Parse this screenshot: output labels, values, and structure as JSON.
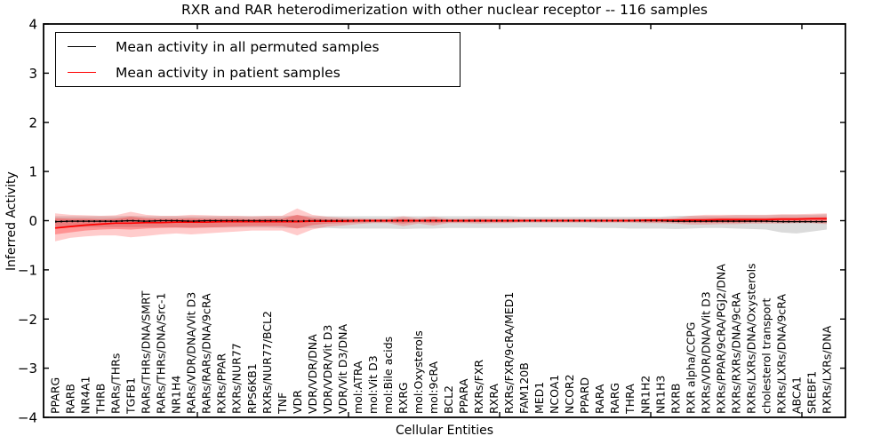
{
  "title": "RXR and RAR heterodimerization with other nuclear receptor -- 116 samples",
  "axes": {
    "ylabel": "Inferred Activity",
    "xlabel": "Cellular Entities"
  },
  "legend": {
    "items": [
      {
        "label": "Mean activity in all permuted samples",
        "color": "#000000"
      },
      {
        "label": "Mean activity in patient samples",
        "color": "#ff0000"
      }
    ]
  },
  "chart_data": {
    "type": "line",
    "title": "RXR and RAR heterodimerization with other nuclear receptor -- 116 samples",
    "xlabel": "Cellular Entities",
    "ylabel": "Inferred Activity",
    "ylim": [
      -4,
      4
    ],
    "yticks": [
      4,
      3,
      2,
      1,
      0,
      -1,
      -2,
      -3,
      -4
    ],
    "grid": false,
    "legend_position": "upper left",
    "sample_count_note": "116 samples",
    "categories": [
      "PPARG",
      "RARB",
      "NR4A1",
      "THRB",
      "RARs/THRs",
      "TGFB1",
      "RARs/THRs/DNA/SMRT",
      "RARs/THRs/DNA/Src-1",
      "NR1H4",
      "RARs/VDR/DNA/Vit D3",
      "RARs/RARs/DNA/9cRA",
      "RXRs/PPAR",
      "RXRs/NUR77",
      "RPS6KB1",
      "RXRs/NUR77/BCL2",
      "TNF",
      "VDR",
      "VDR/VDR/DNA",
      "VDR/VDR/Vit D3",
      "VDR/Vit D3/DNA",
      "mol:ATRA",
      "mol:Vit D3",
      "mol:Bile acids",
      "RXRG",
      "mol:Oxysterols",
      "mol:9cRA",
      "BCL2",
      "PPARA",
      "RXRs/FXR",
      "RXRA",
      "RXRs/FXR/9cRA/MED1",
      "FAM120B",
      "MED1",
      "NCOA1",
      "NCOR2",
      "PPARD",
      "RARA",
      "RARG",
      "THRA",
      "NR1H2",
      "NR1H3",
      "RXRB",
      "RXR alpha/CCPG",
      "RXRs/VDR/DNA/Vit D3",
      "RXRs/PPAR/9cRA/PGJ2/DNA",
      "RXRs/RXRs/DNA/9cRA",
      "RXRs/LXRs/DNA/Oxysterols",
      "cholesterol transport",
      "RXRs/LXRs/DNA/9cRA",
      "ABCA1",
      "SREBF1",
      "RXRs/LXRs/DNA"
    ],
    "series": [
      {
        "name": "Mean activity in all permuted samples",
        "color": "#000000",
        "style": "solid-with-dot-markers",
        "values": [
          -0.02,
          -0.01,
          -0.01,
          -0.01,
          -0.01,
          0,
          -0.01,
          0,
          0,
          -0.01,
          0,
          0,
          0,
          0,
          0,
          0,
          -0.01,
          0,
          0,
          0,
          0,
          0,
          0,
          0,
          0,
          0,
          0,
          0,
          0,
          0,
          0,
          0,
          0,
          0,
          0,
          0,
          0,
          0,
          0,
          0,
          0,
          -0.01,
          -0.01,
          -0.01,
          -0.01,
          -0.01,
          -0.01,
          -0.01,
          -0.02,
          -0.02,
          -0.02,
          -0.02
        ]
      },
      {
        "name": "Mean activity in patient samples",
        "color": "#ff0000",
        "style": "solid",
        "values": [
          -0.15,
          -0.12,
          -0.09,
          -0.07,
          -0.05,
          -0.05,
          -0.04,
          -0.04,
          -0.03,
          -0.03,
          -0.03,
          -0.02,
          -0.02,
          -0.02,
          -0.02,
          -0.02,
          -0.02,
          -0.01,
          -0.01,
          -0.01,
          0,
          0,
          0,
          0,
          0,
          0,
          0,
          0,
          0,
          0,
          0,
          0,
          0,
          0,
          0,
          0,
          0,
          0,
          0,
          0.01,
          0.01,
          0.01,
          0.01,
          0.01,
          0.02,
          0.02,
          0.02,
          0.02,
          0.03,
          0.03,
          0.04,
          0.04
        ]
      }
    ],
    "bands": [
      {
        "name": "permuted samples range",
        "color": "#999999",
        "opacity": 0.35,
        "upper": [
          0.09,
          0.09,
          0.09,
          0.09,
          0.09,
          0.1,
          0.09,
          0.09,
          0.09,
          0.09,
          0.09,
          0.09,
          0.09,
          0.09,
          0.09,
          0.09,
          0.11,
          0.09,
          0.09,
          0.09,
          0.09,
          0.09,
          0.09,
          0.09,
          0.09,
          0.09,
          0.09,
          0.09,
          0.09,
          0.09,
          0.09,
          0.08,
          0.08,
          0.08,
          0.08,
          0.08,
          0.08,
          0.08,
          0.08,
          0.08,
          0.08,
          0.1,
          0.1,
          0.1,
          0.1,
          0.11,
          0.11,
          0.11,
          0.12,
          0.12,
          0.12,
          0.13
        ],
        "lower": [
          -0.13,
          -0.13,
          -0.13,
          -0.13,
          -0.13,
          -0.13,
          -0.13,
          -0.13,
          -0.14,
          -0.14,
          -0.14,
          -0.14,
          -0.14,
          -0.14,
          -0.14,
          -0.15,
          -0.15,
          -0.15,
          -0.15,
          -0.16,
          -0.16,
          -0.16,
          -0.16,
          -0.17,
          -0.16,
          -0.16,
          -0.15,
          -0.15,
          -0.15,
          -0.15,
          -0.15,
          -0.14,
          -0.14,
          -0.14,
          -0.14,
          -0.14,
          -0.15,
          -0.15,
          -0.16,
          -0.16,
          -0.16,
          -0.17,
          -0.16,
          -0.15,
          -0.15,
          -0.16,
          -0.17,
          -0.18,
          -0.24,
          -0.26,
          -0.22,
          -0.18
        ]
      },
      {
        "name": "patient samples range outer",
        "color": "#ff0000",
        "opacity": 0.2,
        "upper": [
          0.15,
          0.12,
          0.11,
          0.1,
          0.11,
          0.18,
          0.12,
          0.1,
          0.1,
          0.12,
          0.11,
          0.1,
          0.1,
          0.09,
          0.1,
          0.1,
          0.25,
          0.12,
          0.08,
          0.06,
          0.05,
          0.04,
          0.04,
          0.09,
          0.05,
          0.08,
          0.04,
          0.04,
          0.05,
          0.04,
          0.04,
          0.04,
          0.04,
          0.04,
          0.04,
          0.04,
          0.04,
          0.04,
          0.04,
          0.04,
          0.05,
          0.06,
          0.1,
          0.12,
          0.12,
          0.12,
          0.12,
          0.12,
          0.13,
          0.13,
          0.14,
          0.15
        ],
        "lower": [
          -0.42,
          -0.35,
          -0.32,
          -0.3,
          -0.3,
          -0.34,
          -0.31,
          -0.28,
          -0.26,
          -0.28,
          -0.26,
          -0.24,
          -0.22,
          -0.2,
          -0.2,
          -0.2,
          -0.3,
          -0.18,
          -0.12,
          -0.1,
          -0.07,
          -0.05,
          -0.05,
          -0.11,
          -0.06,
          -0.1,
          -0.05,
          -0.05,
          -0.06,
          -0.05,
          -0.05,
          -0.04,
          -0.04,
          -0.04,
          -0.04,
          -0.04,
          -0.04,
          -0.04,
          -0.04,
          -0.05,
          -0.05,
          -0.06,
          -0.08,
          -0.08,
          -0.07,
          -0.07,
          -0.06,
          -0.06,
          -0.06,
          -0.05,
          -0.05,
          -0.07
        ]
      },
      {
        "name": "patient samples range inner",
        "color": "#ff0000",
        "opacity": 0.28,
        "upper": [
          0.05,
          0.04,
          0.04,
          0.03,
          0.04,
          0.08,
          0.05,
          0.04,
          0.04,
          0.05,
          0.04,
          0.04,
          0.04,
          0.03,
          0.04,
          0.04,
          0.12,
          0.05,
          0.03,
          0.03,
          0.02,
          0.02,
          0.02,
          0.04,
          0.02,
          0.03,
          0.02,
          0.02,
          0.02,
          0.02,
          0.02,
          0.02,
          0.02,
          0.02,
          0.02,
          0.02,
          0.02,
          0.02,
          0.02,
          0.02,
          0.02,
          0.03,
          0.05,
          0.06,
          0.06,
          0.06,
          0.06,
          0.06,
          0.07,
          0.07,
          0.07,
          0.08
        ],
        "lower": [
          -0.28,
          -0.24,
          -0.2,
          -0.18,
          -0.17,
          -0.18,
          -0.16,
          -0.15,
          -0.14,
          -0.15,
          -0.14,
          -0.13,
          -0.12,
          -0.11,
          -0.11,
          -0.11,
          -0.16,
          -0.09,
          -0.06,
          -0.05,
          -0.04,
          -0.03,
          -0.03,
          -0.06,
          -0.03,
          -0.05,
          -0.03,
          -0.03,
          -0.03,
          -0.03,
          -0.03,
          -0.02,
          -0.02,
          -0.02,
          -0.02,
          -0.02,
          -0.02,
          -0.02,
          -0.02,
          -0.03,
          -0.03,
          -0.03,
          -0.04,
          -0.04,
          -0.04,
          -0.04,
          -0.03,
          -0.03,
          -0.03,
          -0.03,
          -0.03,
          -0.04
        ]
      }
    ]
  }
}
